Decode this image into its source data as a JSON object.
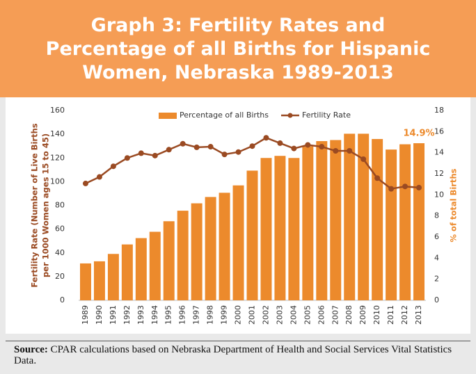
{
  "chart_data": {
    "type": "bar_line",
    "title": [
      "Graph 3: Fertility Rates and",
      "Percentage of all Births for Hispanic",
      "Women, Nebraska 1989-2013"
    ],
    "categories": [
      "1989",
      "1990",
      "1991",
      "1992",
      "1993",
      "1994",
      "1995",
      "1996",
      "1997",
      "1998",
      "1999",
      "2000",
      "2001",
      "2002",
      "2003",
      "2004",
      "2005",
      "2006",
      "2007",
      "2008",
      "2009",
      "2010",
      "2011",
      "2012",
      "2013"
    ],
    "series": [
      {
        "name": "Percentage of all Births",
        "type": "bar",
        "axis": "y2",
        "color": "#ec8a2c",
        "values": [
          3.5,
          3.7,
          4.4,
          5.3,
          5.9,
          6.5,
          7.5,
          8.5,
          9.2,
          9.8,
          10.2,
          10.9,
          12.3,
          13.5,
          13.7,
          13.5,
          14.6,
          15.1,
          15.2,
          15.8,
          15.8,
          15.3,
          14.3,
          14.8,
          14.9
        ],
        "value_labels": [
          null,
          null,
          null,
          null,
          null,
          null,
          null,
          null,
          null,
          null,
          null,
          null,
          null,
          null,
          null,
          null,
          null,
          null,
          null,
          null,
          null,
          null,
          null,
          null,
          "14.9%"
        ]
      },
      {
        "name": "Fertility Rate",
        "type": "line",
        "axis": "y",
        "color": "#9a4a22",
        "values": [
          98.5,
          104,
          113,
          120,
          124,
          122,
          127,
          132,
          129,
          129.5,
          123,
          125,
          130,
          137,
          132.5,
          128,
          131,
          129.5,
          126,
          126,
          119,
          103,
          94,
          96,
          95
        ]
      }
    ],
    "y_label": [
      "Fertility Rate (Number of Live Births",
      "per 1000 Women ages 15 to 45)"
    ],
    "y2_label": "% of total Births",
    "ylim": [
      0,
      160
    ],
    "yticks": [
      0,
      20,
      40,
      60,
      80,
      100,
      120,
      140,
      160
    ],
    "y2lim": [
      0,
      18
    ],
    "y2ticks": [
      0,
      2,
      4,
      6,
      8,
      10,
      12,
      14,
      16,
      18
    ],
    "legend": "top"
  },
  "source": {
    "label": "Source:",
    "text": "CPAR calculations based on Nebraska Department of Health and Social Services Vital Statistics Data."
  }
}
